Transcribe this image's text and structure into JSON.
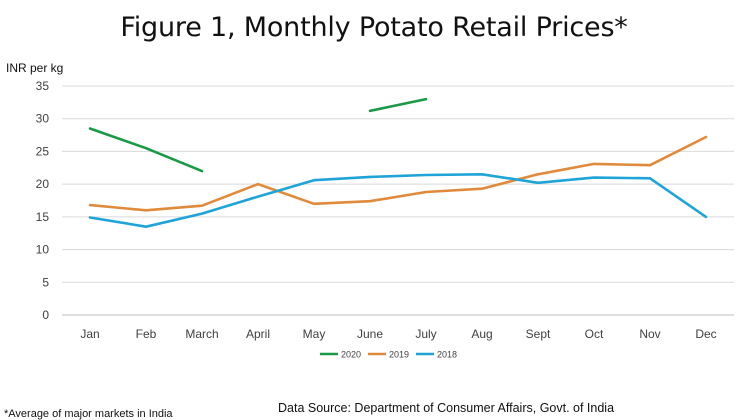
{
  "title": "Figure 1, Monthly Potato Retail Prices*",
  "footnote": "*Average of major markets in India",
  "source": "Data Source: Department of Consumer Affairs, Govt. of India",
  "chart_data": {
    "type": "line",
    "title": "Figure 1, Monthly Potato Retail Prices*",
    "ylabel": "INR per kg",
    "xlabel": "",
    "categories": [
      "Jan",
      "Feb",
      "March",
      "April",
      "May",
      "June",
      "July",
      "Aug",
      "Sept",
      "Oct",
      "Nov",
      "Dec"
    ],
    "ylim": [
      0,
      35
    ],
    "yticks": [
      "35",
      "30",
      "25",
      "20",
      "15",
      "10",
      "5",
      "0"
    ],
    "grid": true,
    "legend_position": "bottom",
    "series": [
      {
        "name": "2020",
        "color": "#1a9a47",
        "values": [
          28.5,
          25.5,
          22.0,
          null,
          null,
          31.2,
          33.0,
          null,
          null,
          null,
          null,
          null
        ]
      },
      {
        "name": "2019",
        "color": "#e08a3c",
        "values": [
          16.8,
          16.0,
          16.7,
          20.0,
          17.0,
          17.4,
          18.8,
          19.3,
          21.5,
          23.1,
          22.9,
          27.2
        ]
      },
      {
        "name": "2018",
        "color": "#1fa4d8",
        "values": [
          14.9,
          13.5,
          15.5,
          18.1,
          20.6,
          21.1,
          21.4,
          21.5,
          20.2,
          21.0,
          20.9,
          15.0
        ]
      }
    ]
  }
}
